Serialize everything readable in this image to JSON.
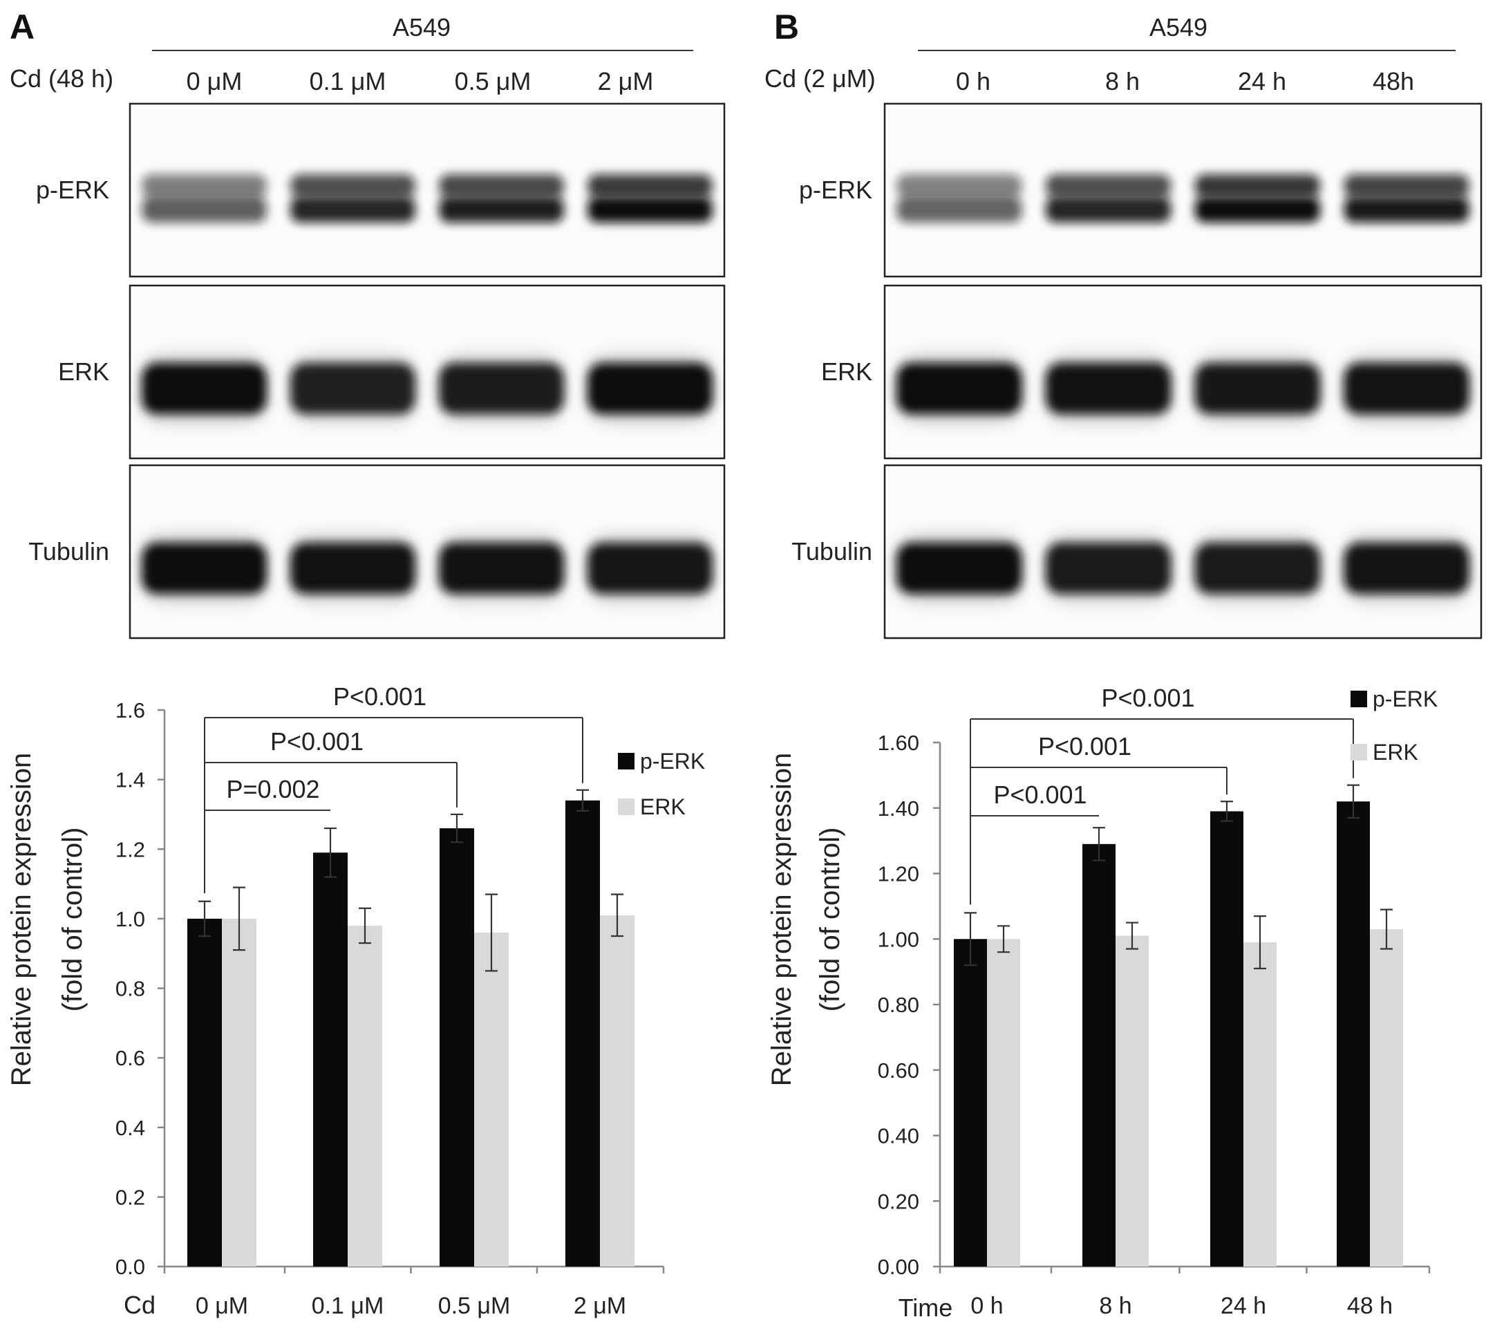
{
  "colors": {
    "p_erk": "#0a0a0a",
    "erk": "#d9d9d9",
    "axis": "#888888",
    "band": "#0b0b0b",
    "text": "#222222"
  },
  "panels": [
    {
      "letter": "A",
      "cell_line": "A549",
      "treatment_label": "Cd (48 h)",
      "lanes": [
        "0 μM",
        "0.1 μM",
        "0.5 μM",
        "2 μM"
      ],
      "blots": [
        {
          "label": "p-ERK",
          "intensity": [
            0.62,
            0.85,
            0.88,
            0.95
          ],
          "doublet": true
        },
        {
          "label": "ERK",
          "intensity": [
            1.0,
            0.9,
            0.92,
            1.0
          ],
          "doublet": false
        },
        {
          "label": "Tubulin",
          "intensity": [
            1.0,
            0.97,
            0.97,
            0.95
          ],
          "doublet": false
        }
      ]
    },
    {
      "letter": "B",
      "cell_line": "A549",
      "treatment_label": "Cd (2 μM)",
      "lanes": [
        "0 h",
        "8 h",
        "24 h",
        "48h"
      ],
      "blots": [
        {
          "label": "p-ERK",
          "intensity": [
            0.6,
            0.85,
            0.97,
            0.9
          ],
          "doublet": true
        },
        {
          "label": "ERK",
          "intensity": [
            1.0,
            0.97,
            0.94,
            0.96
          ],
          "doublet": false
        },
        {
          "label": "Tubulin",
          "intensity": [
            1.0,
            0.93,
            0.93,
            0.96
          ],
          "doublet": false
        }
      ]
    }
  ],
  "chart_data": [
    {
      "type": "bar",
      "ylabel": "Relative protein expression",
      "ylabel2": "(fold of control)",
      "x_axis_name": "Cd",
      "categories": [
        "0 μM",
        "0.1 μM",
        "0.5 μM",
        "2 μM"
      ],
      "ylim": [
        0,
        1.6
      ],
      "yticks": [
        "0.0",
        "0.2",
        "0.4",
        "0.6",
        "0.8",
        "1.0",
        "1.2",
        "1.4",
        "1.6"
      ],
      "series": [
        {
          "name": "p-ERK",
          "values": [
            1.0,
            1.19,
            1.26,
            1.34
          ],
          "errors": [
            0.05,
            0.07,
            0.04,
            0.03
          ]
        },
        {
          "name": "ERK",
          "values": [
            1.0,
            0.98,
            0.96,
            1.01
          ],
          "errors": [
            0.09,
            0.05,
            0.11,
            0.06
          ]
        }
      ],
      "legend_position": "right",
      "grid": false,
      "annotations": [
        {
          "text": "P=0.002",
          "from": 0,
          "to": 1
        },
        {
          "text": "P<0.001",
          "from": 0,
          "to": 2
        },
        {
          "text": "P<0.001",
          "from": 0,
          "to": 3
        }
      ]
    },
    {
      "type": "bar",
      "ylabel": "Relative protein expression",
      "ylabel2": "(fold of control)",
      "x_axis_name": "Time",
      "categories": [
        "0 h",
        "8 h",
        "24 h",
        "48 h"
      ],
      "ylim": [
        0,
        1.6
      ],
      "yticks": [
        "0.00",
        "0.20",
        "0.40",
        "0.60",
        "0.80",
        "1.00",
        "1.20",
        "1.40",
        "1.60"
      ],
      "series": [
        {
          "name": "p-ERK",
          "values": [
            1.0,
            1.29,
            1.39,
            1.42
          ],
          "errors": [
            0.08,
            0.05,
            0.03,
            0.05
          ]
        },
        {
          "name": "ERK",
          "values": [
            1.0,
            1.01,
            0.99,
            1.03
          ],
          "errors": [
            0.04,
            0.04,
            0.08,
            0.06
          ]
        }
      ],
      "legend_position": "top-right",
      "grid": false,
      "annotations": [
        {
          "text": "P<0.001",
          "from": 0,
          "to": 1
        },
        {
          "text": "P<0.001",
          "from": 0,
          "to": 2
        },
        {
          "text": "P<0.001",
          "from": 0,
          "to": 3
        }
      ]
    }
  ]
}
